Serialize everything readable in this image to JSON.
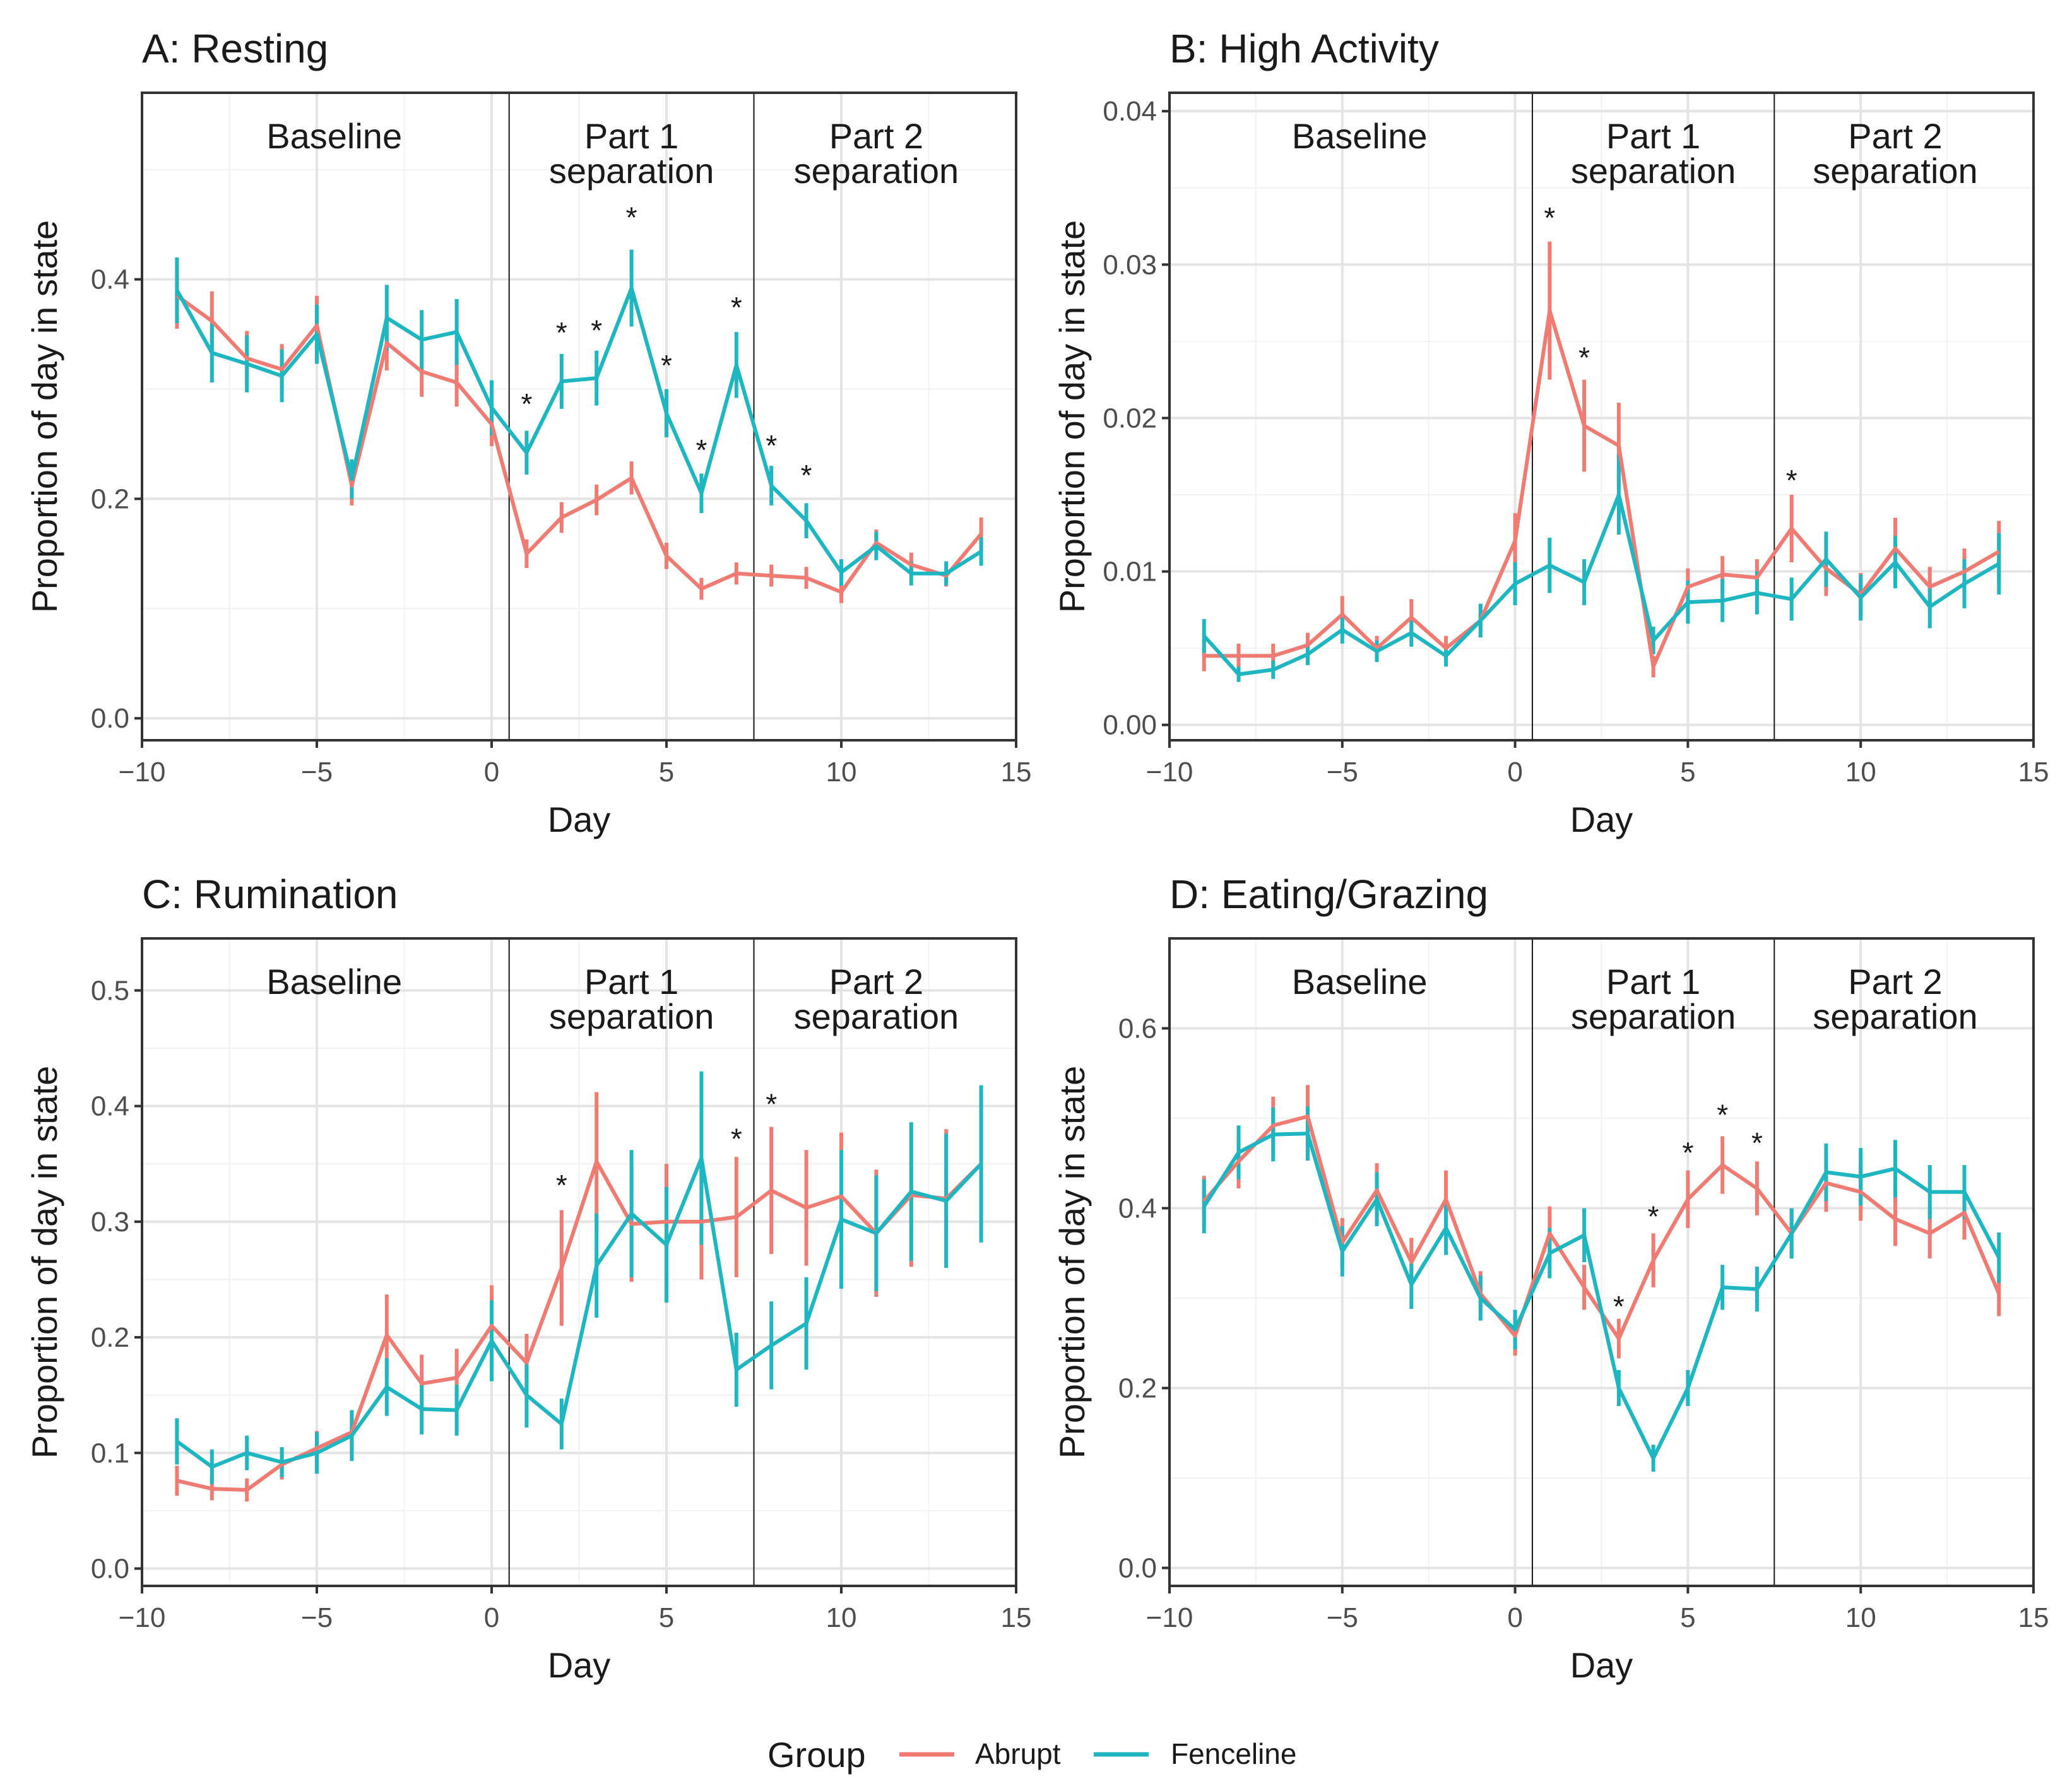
{
  "legend": {
    "title": "Group",
    "items": [
      {
        "label": "Abrupt",
        "color": "#F07B72"
      },
      {
        "label": "Fenceline",
        "color": "#1EB6C0"
      }
    ]
  },
  "chart_data": [
    {
      "type": "line",
      "title": "A: Resting",
      "xlabel": "Day",
      "ylabel": "Proportion of day in state",
      "xlim": [
        -10,
        15
      ],
      "ylim": [
        -0.02,
        0.57
      ],
      "xticks": [
        -10,
        -5,
        0,
        5,
        10,
        15
      ],
      "xtick_labels": [
        "−10",
        "−5",
        "0",
        "5",
        "10",
        "15"
      ],
      "yticks": [
        0.0,
        0.2,
        0.4
      ],
      "ytick_labels": [
        "0.0",
        "0.2",
        "0.4"
      ],
      "phase_boundaries": [
        0.5,
        7.5
      ],
      "phases": [
        {
          "lines": [
            "Baseline"
          ],
          "center_x": -4.5
        },
        {
          "lines": [
            "Part 1",
            "separation"
          ],
          "center_x": 4
        },
        {
          "lines": [
            "Part 2",
            "separation"
          ],
          "center_x": 11
        }
      ],
      "series": [
        {
          "name": "Abrupt",
          "x": [
            -9,
            -8,
            -7,
            -6,
            -5,
            -4,
            -3,
            -2,
            -1,
            0,
            1,
            2,
            3,
            4,
            5,
            6,
            7,
            8,
            9,
            10,
            11,
            12,
            13,
            14
          ],
          "y": [
            0.385,
            0.362,
            0.328,
            0.318,
            0.358,
            0.212,
            0.342,
            0.316,
            0.306,
            0.268,
            0.15,
            0.183,
            0.199,
            0.219,
            0.148,
            0.118,
            0.132,
            0.13,
            0.128,
            0.115,
            0.16,
            0.14,
            0.13,
            0.168
          ],
          "err": [
            0.03,
            0.027,
            0.025,
            0.023,
            0.027,
            0.018,
            0.025,
            0.023,
            0.022,
            0.02,
            0.013,
            0.014,
            0.014,
            0.015,
            0.012,
            0.01,
            0.01,
            0.01,
            0.01,
            0.01,
            0.012,
            0.011,
            0.01,
            0.015
          ]
        },
        {
          "name": "Fenceline",
          "x": [
            -9,
            -8,
            -7,
            -6,
            -5,
            -4,
            -3,
            -2,
            -1,
            0,
            1,
            2,
            3,
            4,
            5,
            6,
            7,
            8,
            9,
            10,
            11,
            12,
            13,
            14
          ],
          "y": [
            0.39,
            0.333,
            0.323,
            0.312,
            0.35,
            0.218,
            0.365,
            0.345,
            0.352,
            0.283,
            0.242,
            0.307,
            0.31,
            0.392,
            0.278,
            0.205,
            0.322,
            0.212,
            0.18,
            0.133,
            0.157,
            0.132,
            0.132,
            0.152
          ],
          "err": [
            0.03,
            0.027,
            0.026,
            0.024,
            0.027,
            0.018,
            0.03,
            0.027,
            0.03,
            0.025,
            0.02,
            0.025,
            0.025,
            0.035,
            0.022,
            0.018,
            0.03,
            0.018,
            0.016,
            0.012,
            0.013,
            0.011,
            0.011,
            0.013
          ]
        }
      ],
      "significance": {
        "label": "*",
        "x": [
          1,
          2,
          3,
          4,
          5,
          6,
          7,
          8,
          9
        ],
        "y": [
          0.29,
          0.355,
          0.357,
          0.46,
          0.325,
          0.248,
          0.378,
          0.252,
          0.225
        ]
      }
    },
    {
      "type": "line",
      "title": "B: High Activity",
      "xlabel": "Day",
      "ylabel": "Proportion of day in state",
      "xlim": [
        -10,
        15
      ],
      "ylim": [
        -0.001,
        0.0412
      ],
      "xticks": [
        -10,
        -5,
        0,
        5,
        10,
        15
      ],
      "xtick_labels": [
        "−10",
        "−5",
        "0",
        "5",
        "10",
        "15"
      ],
      "yticks": [
        0.0,
        0.01,
        0.02,
        0.03,
        0.04
      ],
      "ytick_labels": [
        "0.00",
        "0.01",
        "0.02",
        "0.03",
        "0.04"
      ],
      "phase_boundaries": [
        0.5,
        7.5
      ],
      "phases": [
        {
          "lines": [
            "Baseline"
          ],
          "center_x": -4.5
        },
        {
          "lines": [
            "Part 1",
            "separation"
          ],
          "center_x": 4
        },
        {
          "lines": [
            "Part 2",
            "separation"
          ],
          "center_x": 11
        }
      ],
      "series": [
        {
          "name": "Abrupt",
          "x": [
            -9,
            -8,
            -7,
            -6,
            -5,
            -4,
            -3,
            -2,
            -1,
            0,
            1,
            2,
            3,
            4,
            5,
            6,
            7,
            8,
            9,
            10,
            11,
            12,
            13,
            14
          ],
          "y": [
            0.0045,
            0.0045,
            0.0045,
            0.0052,
            0.0072,
            0.005,
            0.007,
            0.005,
            0.0068,
            0.012,
            0.027,
            0.0195,
            0.0182,
            0.0038,
            0.009,
            0.0098,
            0.0096,
            0.0128,
            0.0102,
            0.0085,
            0.0115,
            0.009,
            0.01,
            0.0113
          ],
          "err": [
            0.001,
            0.0008,
            0.0008,
            0.0008,
            0.0012,
            0.0008,
            0.0012,
            0.0008,
            0.001,
            0.0018,
            0.0045,
            0.003,
            0.0028,
            0.0007,
            0.0012,
            0.0012,
            0.0012,
            0.0022,
            0.0018,
            0.0014,
            0.002,
            0.0013,
            0.0015,
            0.002
          ]
        },
        {
          "name": "Fenceline",
          "x": [
            -9,
            -8,
            -7,
            -6,
            -5,
            -4,
            -3,
            -2,
            -1,
            0,
            1,
            2,
            3,
            4,
            5,
            6,
            7,
            8,
            9,
            10,
            11,
            12,
            13,
            14
          ],
          "y": [
            0.0058,
            0.0033,
            0.0036,
            0.0046,
            0.0062,
            0.0048,
            0.006,
            0.0045,
            0.0068,
            0.0092,
            0.0104,
            0.0093,
            0.015,
            0.0055,
            0.008,
            0.0081,
            0.0086,
            0.0082,
            0.0108,
            0.0083,
            0.0106,
            0.0077,
            0.0092,
            0.0105
          ],
          "err": [
            0.0011,
            0.0005,
            0.0006,
            0.0007,
            0.0009,
            0.0007,
            0.0009,
            0.0007,
            0.0011,
            0.0014,
            0.0018,
            0.0015,
            0.0026,
            0.0009,
            0.0014,
            0.0014,
            0.0014,
            0.0014,
            0.0018,
            0.0015,
            0.0017,
            0.0014,
            0.0016,
            0.002
          ]
        }
      ],
      "significance": {
        "label": "*",
        "x": [
          1,
          2,
          8
        ],
        "y": [
          0.0333,
          0.0242,
          0.0162
        ]
      }
    },
    {
      "type": "line",
      "title": "C: Rumination",
      "xlabel": "Day",
      "ylabel": "Proportion of day in state",
      "xlim": [
        -10,
        15
      ],
      "ylim": [
        -0.015,
        0.545
      ],
      "xticks": [
        -10,
        -5,
        0,
        5,
        10,
        15
      ],
      "xtick_labels": [
        "−10",
        "−5",
        "0",
        "5",
        "10",
        "15"
      ],
      "yticks": [
        0.0,
        0.1,
        0.2,
        0.3,
        0.4,
        0.5
      ],
      "ytick_labels": [
        "0.0",
        "0.1",
        "0.2",
        "0.3",
        "0.4",
        "0.5"
      ],
      "phase_boundaries": [
        0.5,
        7.5
      ],
      "phases": [
        {
          "lines": [
            "Baseline"
          ],
          "center_x": -4.5
        },
        {
          "lines": [
            "Part 1",
            "separation"
          ],
          "center_x": 4
        },
        {
          "lines": [
            "Part 2",
            "separation"
          ],
          "center_x": 11
        }
      ],
      "series": [
        {
          "name": "Abrupt",
          "x": [
            -9,
            -8,
            -7,
            -6,
            -5,
            -4,
            -3,
            -2,
            -1,
            0,
            1,
            2,
            3,
            4,
            5,
            6,
            7,
            8,
            9,
            10,
            11,
            12,
            13,
            14
          ],
          "y": [
            0.076,
            0.069,
            0.068,
            0.09,
            0.104,
            0.118,
            0.202,
            0.16,
            0.165,
            0.21,
            0.178,
            0.26,
            0.352,
            0.298,
            0.3,
            0.3,
            0.304,
            0.327,
            0.312,
            0.322,
            0.29,
            0.323,
            0.32,
            0.35
          ],
          "err": [
            0.013,
            0.01,
            0.01,
            0.013,
            0.015,
            0.018,
            0.035,
            0.025,
            0.025,
            0.035,
            0.025,
            0.05,
            0.06,
            0.05,
            0.05,
            0.05,
            0.052,
            0.055,
            0.05,
            0.055,
            0.055,
            0.062,
            0.06,
            0.065
          ]
        },
        {
          "name": "Fenceline",
          "x": [
            -9,
            -8,
            -7,
            -6,
            -5,
            -4,
            -3,
            -2,
            -1,
            0,
            1,
            2,
            3,
            4,
            5,
            6,
            7,
            8,
            9,
            10,
            11,
            12,
            13,
            14
          ],
          "y": [
            0.11,
            0.088,
            0.1,
            0.092,
            0.1,
            0.115,
            0.157,
            0.138,
            0.137,
            0.197,
            0.15,
            0.125,
            0.262,
            0.307,
            0.28,
            0.355,
            0.172,
            0.193,
            0.212,
            0.302,
            0.29,
            0.326,
            0.318,
            0.35
          ],
          "err": [
            0.02,
            0.015,
            0.015,
            0.013,
            0.018,
            0.022,
            0.025,
            0.022,
            0.022,
            0.035,
            0.028,
            0.022,
            0.045,
            0.055,
            0.05,
            0.075,
            0.032,
            0.038,
            0.04,
            0.06,
            0.05,
            0.06,
            0.058,
            0.068
          ]
        }
      ],
      "significance": {
        "label": "*",
        "x": [
          2,
          7,
          8
        ],
        "y": [
          0.335,
          0.375,
          0.405
        ]
      }
    },
    {
      "type": "line",
      "title": "D: Eating/Grazing",
      "xlabel": "Day",
      "ylabel": "Proportion of day in state",
      "xlim": [
        -10,
        15
      ],
      "ylim": [
        -0.02,
        0.7
      ],
      "xticks": [
        -10,
        -5,
        0,
        5,
        10,
        15
      ],
      "xtick_labels": [
        "−10",
        "−5",
        "0",
        "5",
        "10",
        "15"
      ],
      "yticks": [
        0.0,
        0.2,
        0.4,
        0.6
      ],
      "ytick_labels": [
        "0.0",
        "0.2",
        "0.4",
        "0.6"
      ],
      "phase_boundaries": [
        0.5,
        7.5
      ],
      "phases": [
        {
          "lines": [
            "Baseline"
          ],
          "center_x": -4.5
        },
        {
          "lines": [
            "Part 1",
            "separation"
          ],
          "center_x": 4
        },
        {
          "lines": [
            "Part 2",
            "separation"
          ],
          "center_x": 11
        }
      ],
      "series": [
        {
          "name": "Abrupt",
          "x": [
            -9,
            -8,
            -7,
            -6,
            -5,
            -4,
            -3,
            -2,
            -1,
            0,
            1,
            2,
            3,
            4,
            5,
            6,
            7,
            8,
            9,
            10,
            11,
            12,
            13,
            14
          ],
          "y": [
            0.408,
            0.452,
            0.492,
            0.502,
            0.362,
            0.42,
            0.34,
            0.41,
            0.305,
            0.258,
            0.372,
            0.312,
            0.255,
            0.342,
            0.41,
            0.448,
            0.422,
            0.372,
            0.428,
            0.418,
            0.388,
            0.372,
            0.395,
            0.305
          ],
          "err": [
            0.028,
            0.03,
            0.032,
            0.035,
            0.027,
            0.03,
            0.027,
            0.032,
            0.025,
            0.022,
            0.03,
            0.025,
            0.022,
            0.03,
            0.032,
            0.032,
            0.03,
            0.028,
            0.032,
            0.032,
            0.03,
            0.028,
            0.03,
            0.025
          ]
        },
        {
          "name": "Fenceline",
          "x": [
            -9,
            -8,
            -7,
            -6,
            -5,
            -4,
            -3,
            -2,
            -1,
            0,
            1,
            2,
            3,
            4,
            5,
            6,
            7,
            8,
            9,
            10,
            11,
            12,
            13,
            14
          ],
          "y": [
            0.402,
            0.462,
            0.482,
            0.483,
            0.352,
            0.41,
            0.315,
            0.378,
            0.3,
            0.265,
            0.35,
            0.37,
            0.2,
            0.122,
            0.2,
            0.312,
            0.31,
            0.372,
            0.44,
            0.435,
            0.444,
            0.418,
            0.418,
            0.345
          ],
          "err": [
            0.03,
            0.03,
            0.03,
            0.03,
            0.028,
            0.03,
            0.027,
            0.03,
            0.025,
            0.022,
            0.028,
            0.03,
            0.02,
            0.015,
            0.02,
            0.025,
            0.025,
            0.028,
            0.032,
            0.032,
            0.032,
            0.03,
            0.03,
            0.028
          ]
        }
      ],
      "significance": {
        "label": "*",
        "x": [
          3,
          4,
          5,
          6,
          7
        ],
        "y": [
          0.295,
          0.395,
          0.466,
          0.508,
          0.477
        ]
      }
    }
  ]
}
